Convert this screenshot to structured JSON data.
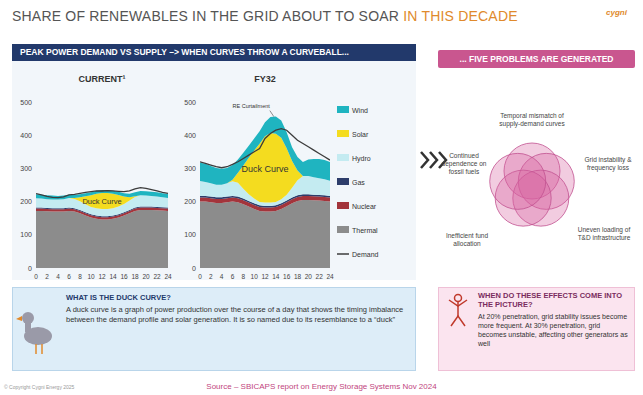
{
  "header": {
    "title": "SHARE OF RENEWABLES IN THE GRID ABOUT TO SOAR",
    "title_highlight": "IN THIS DECADE",
    "logo": "cygni"
  },
  "left_panel": {
    "heading": "PEAK POWER DEMAND VS SUPPLY –> WHEN CURVES THROW A CURVEBALL..."
  },
  "chart_data": [
    {
      "type": "area",
      "title": "CURRENT¹",
      "stacked": true,
      "grid": false,
      "x": [
        0,
        1,
        2,
        3,
        4,
        5,
        6,
        7,
        8,
        9,
        10,
        11,
        12,
        13,
        14,
        15,
        16,
        17,
        18,
        19,
        20,
        21,
        22,
        23,
        24
      ],
      "xlim": [
        0,
        24
      ],
      "xticks": [
        0,
        2,
        4,
        6,
        8,
        10,
        12,
        14,
        16,
        18,
        20,
        22,
        24
      ],
      "ylim": [
        0,
        500
      ],
      "yticks": [
        0,
        100,
        200,
        300,
        400,
        500
      ],
      "annotations": {
        "duck": "Duck Curve"
      },
      "series": [
        {
          "color": "#8c8c8c",
          "values": [
            172,
            172,
            171,
            170,
            170,
            170,
            172,
            170,
            165,
            158,
            152,
            148,
            146,
            146,
            148,
            152,
            158,
            165,
            172,
            175,
            175,
            175,
            174,
            173,
            172
          ]
        },
        {
          "color": "#a3343b",
          "values": [
            7,
            7,
            7,
            7,
            7,
            7,
            7,
            7,
            7,
            7,
            7,
            7,
            7,
            7,
            7,
            7,
            7,
            7,
            7,
            7,
            7,
            7,
            7,
            7,
            7
          ]
        },
        {
          "color": "#2e3d6b",
          "values": [
            3,
            3,
            3,
            3,
            3,
            3,
            3,
            3,
            3,
            3,
            3,
            3,
            3,
            3,
            3,
            3,
            3,
            3,
            3,
            3,
            3,
            3,
            3,
            3,
            3
          ]
        },
        {
          "color": "#c4ebf1",
          "values": [
            28,
            27,
            26,
            26,
            26,
            27,
            29,
            28,
            26,
            24,
            22,
            22,
            22,
            22,
            22,
            23,
            25,
            28,
            32,
            34,
            33,
            32,
            31,
            30,
            29
          ]
        },
        {
          "color": "#f4dc1f",
          "values": [
            0,
            0,
            0,
            0,
            0,
            0,
            0,
            3,
            12,
            24,
            35,
            44,
            48,
            48,
            44,
            35,
            22,
            10,
            2,
            0,
            0,
            0,
            0,
            0,
            0
          ]
        },
        {
          "color": "#1fb4c0",
          "values": [
            12,
            12,
            12,
            12,
            11,
            11,
            10,
            9,
            9,
            9,
            9,
            9,
            9,
            9,
            9,
            10,
            10,
            11,
            12,
            13,
            13,
            13,
            13,
            12,
            12
          ]
        },
        {
          "type": "line",
          "color": "#3c3c3c",
          "values": [
            224,
            220,
            216,
            213,
            212,
            214,
            220,
            222,
            225,
            228,
            230,
            232,
            232,
            233,
            232,
            231,
            230,
            232,
            238,
            242,
            240,
            236,
            232,
            228,
            225
          ]
        }
      ]
    },
    {
      "type": "area",
      "title": "FY32",
      "stacked": true,
      "grid": false,
      "legend": "right",
      "x": [
        0,
        1,
        2,
        3,
        4,
        5,
        6,
        7,
        8,
        9,
        10,
        11,
        12,
        13,
        14,
        15,
        16,
        17,
        18,
        19,
        20,
        21,
        22,
        23,
        24
      ],
      "xlim": [
        0,
        24
      ],
      "xticks": [
        0,
        2,
        4,
        6,
        8,
        10,
        12,
        14,
        16,
        18,
        20,
        22,
        24
      ],
      "ylim": [
        0,
        500
      ],
      "yticks": [
        0,
        100,
        200,
        300,
        400,
        500
      ],
      "annotations": {
        "duck": "Duck Curve",
        "curtailment": "RE Curtailment"
      },
      "series": [
        {
          "name": "Thermal",
          "color": "#8c8c8c",
          "values": [
            200,
            200,
            198,
            196,
            196,
            198,
            200,
            198,
            192,
            185,
            178,
            172,
            170,
            170,
            172,
            178,
            186,
            195,
            202,
            205,
            205,
            204,
            203,
            202,
            200
          ]
        },
        {
          "name": "Nuclear",
          "color": "#a3343b",
          "values": [
            12,
            12,
            12,
            12,
            12,
            12,
            12,
            12,
            12,
            12,
            12,
            12,
            12,
            12,
            12,
            12,
            12,
            12,
            12,
            12,
            12,
            12,
            12,
            12,
            12
          ]
        },
        {
          "name": "Gas",
          "color": "#2e3d6b",
          "values": [
            5,
            5,
            5,
            5,
            5,
            5,
            5,
            5,
            5,
            5,
            5,
            5,
            5,
            5,
            5,
            5,
            5,
            5,
            5,
            5,
            5,
            5,
            5,
            5,
            5
          ]
        },
        {
          "name": "Hydro",
          "color": "#c4ebf1",
          "values": [
            45,
            42,
            40,
            38,
            38,
            40,
            44,
            42,
            30,
            20,
            14,
            10,
            10,
            10,
            10,
            12,
            18,
            30,
            45,
            55,
            55,
            52,
            50,
            48,
            46
          ]
        },
        {
          "name": "Solar",
          "color": "#f4dc1f",
          "values": [
            0,
            0,
            0,
            0,
            0,
            0,
            5,
            30,
            70,
            110,
            145,
            175,
            200,
            210,
            205,
            185,
            140,
            80,
            30,
            0,
            0,
            0,
            0,
            0,
            0
          ]
        },
        {
          "name": "Wind",
          "color": "#1fb4c0",
          "values": [
            55,
            55,
            52,
            50,
            48,
            46,
            44,
            40,
            38,
            36,
            36,
            38,
            42,
            48,
            52,
            52,
            48,
            42,
            40,
            42,
            50,
            55,
            58,
            58,
            56
          ]
        },
        {
          "name": "Demand",
          "type": "line",
          "color": "#3c3c3c",
          "values": [
            320,
            315,
            310,
            305,
            302,
            305,
            312,
            320,
            330,
            340,
            350,
            360,
            390,
            405,
            415,
            420,
            415,
            400,
            385,
            375,
            365,
            355,
            345,
            335,
            325
          ]
        }
      ]
    }
  ],
  "duck_box": {
    "question": "WHAT IS THE DUCK CURVE?",
    "text": "A duck curve is a graph of power production over the course of a day that shows the timing imbalance between the demand profile and solar generation. It is so named due to its resemblance to a “duck”"
  },
  "problems": {
    "heading": "... FIVE PROBLEMS ARE GENERATED",
    "items": [
      "Temporal mismatch of supply-demand curves",
      "Grid instability & frequency loss",
      "Uneven loading of T&D infrastructure",
      "Inefficient fund allocation",
      "Continued dependence on fossil fuels"
    ]
  },
  "effects_box": {
    "question": "WHEN DO THESE EFFECTS COME INTO THE PICTURE?",
    "text": "At 20% penetration, grid stability issues become more frequent. At 30% penetration, grid becomes unstable, affecting other generators as well"
  },
  "footer": {
    "copyright": "© Copyright Cygni Energy 2025",
    "source": "Source – SBICAPS report on Energy Storage Systems Nov 2024"
  }
}
